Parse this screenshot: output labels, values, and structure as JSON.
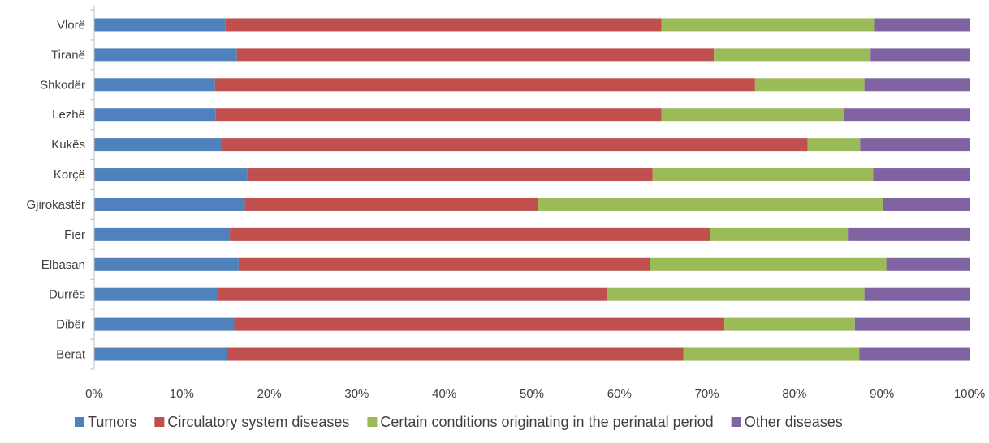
{
  "chart_data": {
    "type": "bar",
    "orientation": "horizontal",
    "stacked": "percent",
    "categories": [
      "Vlorë",
      "Tiranë",
      "Shkodër",
      "Lezhë",
      "Kukës",
      "Korçë",
      "Gjirokastër",
      "Fier",
      "Elbasan",
      "Durrës",
      "Dibër",
      "Berat"
    ],
    "series": [
      {
        "name": "Tumors",
        "color": "#4f81bd",
        "values": [
          15,
          16.3,
          13.8,
          13.9,
          14.6,
          17.5,
          17.2,
          15.5,
          16.5,
          14.1,
          16,
          15.2
        ]
      },
      {
        "name": "Circulatory system diseases",
        "color": "#c0504d",
        "values": [
          49.8,
          54.5,
          61.7,
          50.9,
          66.9,
          46.3,
          33.5,
          54.9,
          47,
          44.5,
          56,
          52.1
        ]
      },
      {
        "name": "Certain conditions originating in the perinatal period",
        "color": "#9bbb59",
        "values": [
          24.3,
          17.9,
          12.5,
          20.8,
          6,
          25.2,
          39.4,
          15.7,
          27,
          29.4,
          14.9,
          20.1
        ]
      },
      {
        "name": "Other diseases",
        "color": "#8064a2",
        "values": [
          10.9,
          11.3,
          12,
          14.4,
          12.5,
          11,
          9.9,
          13.9,
          9.5,
          12,
          13.1,
          12.6
        ]
      }
    ],
    "x_ticks": [
      "0%",
      "10%",
      "20%",
      "30%",
      "40%",
      "50%",
      "60%",
      "70%",
      "80%",
      "90%",
      "100%"
    ],
    "xlim": [
      0,
      100
    ],
    "grid": false,
    "legend_position": "bottom"
  }
}
